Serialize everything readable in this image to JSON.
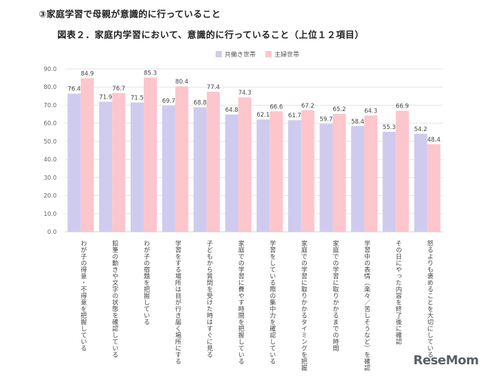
{
  "heading": "③家庭学習で母親が意識的に行っていること",
  "watermark": "ReseMom",
  "chart_data": {
    "type": "bar",
    "title": "図表２．家庭内学習において、意識的に行っていること（上位１２項目）",
    "categories": [
      "わが子の得意・不得意を把握している",
      "鉛筆の動きや文字の状態を確認している",
      "わが子の宿題を把握している",
      "学習をする場所は目が行き届く場所にする",
      "子どもから質問を受けた時はすぐに見る",
      "家庭での学習に費やす時間を把握している",
      "学習をしている際の集中力を確認している",
      "家庭での学習に取りかかるタイミングを把握",
      "家庭での学習に取りかかるまでの時間",
      "学習中の表情（楽々／苦しそうなど）を確認",
      "その日にやった内容を終了後に確認",
      "怒るよりも褒めることを大切にしている"
    ],
    "series": [
      {
        "name": "共働き世帯",
        "color": "#cfcbef",
        "values": [
          76.4,
          71.9,
          71.5,
          69.7,
          68.8,
          64.8,
          62.1,
          61.7,
          59.7,
          58.4,
          55.3,
          54.2
        ]
      },
      {
        "name": "主婦世帯",
        "color": "#fdc6cc",
        "values": [
          84.9,
          76.7,
          85.3,
          80.4,
          77.4,
          74.3,
          66.6,
          67.2,
          65.2,
          64.3,
          66.9,
          48.4
        ]
      }
    ],
    "ylim": [
      0,
      90
    ],
    "yticks": [
      "0.0",
      "10.0",
      "20.0",
      "30.0",
      "40.0",
      "50.0",
      "60.0",
      "70.0",
      "80.0",
      "90.0"
    ],
    "legend_position": "top-center",
    "grid": true
  }
}
